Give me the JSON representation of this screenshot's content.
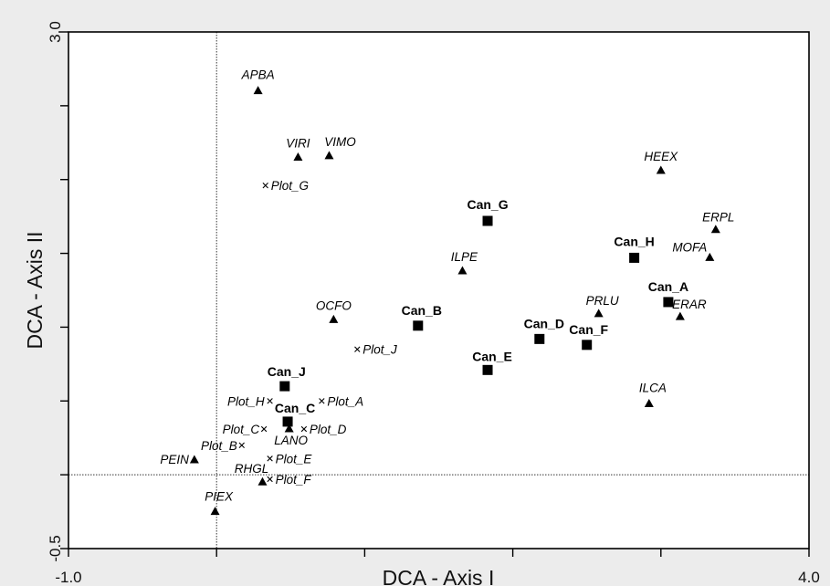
{
  "chart_data": {
    "type": "scatter",
    "title": "",
    "xlabel": "DCA - Axis I",
    "ylabel": "DCA - Axis II",
    "xlim": [
      -1.0,
      4.0
    ],
    "ylim": [
      -0.5,
      3.0
    ],
    "x_tick_labels": [
      {
        "value": -1.0,
        "label": "-1.0"
      },
      {
        "value": 4.0,
        "label": "4.0"
      }
    ],
    "y_tick_labels": [
      {
        "value": -0.5,
        "label": "-0.5"
      },
      {
        "value": 3.0,
        "label": "3.0"
      }
    ],
    "x_ticks": [
      -1.0,
      0.0,
      1.0,
      2.0,
      3.0,
      4.0
    ],
    "y_ticks": [
      -0.5,
      0.0,
      0.5,
      1.0,
      1.5,
      2.0,
      2.5,
      3.0
    ],
    "reference_lines": {
      "x": 0.0,
      "y": 0.0
    },
    "grid": false,
    "legend": "none",
    "marker_color": "#000000",
    "series": [
      {
        "marker": "triangle",
        "label_style": "italic",
        "points": [
          {
            "label": "APBA",
            "x": 0.28,
            "y": 2.6
          },
          {
            "label": "VIRI",
            "x": 0.55,
            "y": 2.15
          },
          {
            "label": "VIMO",
            "x": 0.76,
            "y": 2.16
          },
          {
            "label": "HEEX",
            "x": 3.0,
            "y": 2.06
          },
          {
            "label": "ERPL",
            "x": 3.37,
            "y": 1.66
          },
          {
            "label": "MOFA",
            "x": 3.33,
            "y": 1.47
          },
          {
            "label": "ILPE",
            "x": 1.66,
            "y": 1.38
          },
          {
            "label": "PRLU",
            "x": 2.58,
            "y": 1.09
          },
          {
            "label": "ERAR",
            "x": 3.13,
            "y": 1.07
          },
          {
            "label": "OCFO",
            "x": 0.79,
            "y": 1.05
          },
          {
            "label": "ILCA",
            "x": 2.92,
            "y": 0.48
          },
          {
            "label": "LANO",
            "x": 0.49,
            "y": 0.31
          },
          {
            "label": "PEIN",
            "x": -0.15,
            "y": 0.1
          },
          {
            "label": "RHGL",
            "x": 0.31,
            "y": -0.05
          },
          {
            "label": "PIEX",
            "x": -0.01,
            "y": -0.25
          }
        ]
      },
      {
        "marker": "square",
        "label_style": "bold",
        "points": [
          {
            "label": "Can_G",
            "x": 1.83,
            "y": 1.72
          },
          {
            "label": "Can_H",
            "x": 2.82,
            "y": 1.47
          },
          {
            "label": "Can_A",
            "x": 3.05,
            "y": 1.17
          },
          {
            "label": "Can_B",
            "x": 1.36,
            "y": 1.01
          },
          {
            "label": "Can_D",
            "x": 2.18,
            "y": 0.92
          },
          {
            "label": "Can_F",
            "x": 2.5,
            "y": 0.88
          },
          {
            "label": "Can_E",
            "x": 1.83,
            "y": 0.71
          },
          {
            "label": "Can_J",
            "x": 0.46,
            "y": 0.6
          },
          {
            "label": "Can_C",
            "x": 0.48,
            "y": 0.36
          }
        ]
      },
      {
        "marker": "x",
        "label_style": "italic",
        "points": [
          {
            "label": "Plot_G",
            "x": 0.33,
            "y": 1.96
          },
          {
            "label": "Plot_J",
            "x": 0.95,
            "y": 0.85
          },
          {
            "label": "Plot_H",
            "x": 0.36,
            "y": 0.5
          },
          {
            "label": "Plot_A",
            "x": 0.71,
            "y": 0.5
          },
          {
            "label": "Plot_C",
            "x": 0.32,
            "y": 0.31
          },
          {
            "label": "Plot_D",
            "x": 0.59,
            "y": 0.31
          },
          {
            "label": "Plot_B",
            "x": 0.17,
            "y": 0.2
          },
          {
            "label": "Plot_E",
            "x": 0.36,
            "y": 0.11
          },
          {
            "label": "Plot_F",
            "x": 0.36,
            "y": -0.03
          }
        ]
      }
    ]
  }
}
